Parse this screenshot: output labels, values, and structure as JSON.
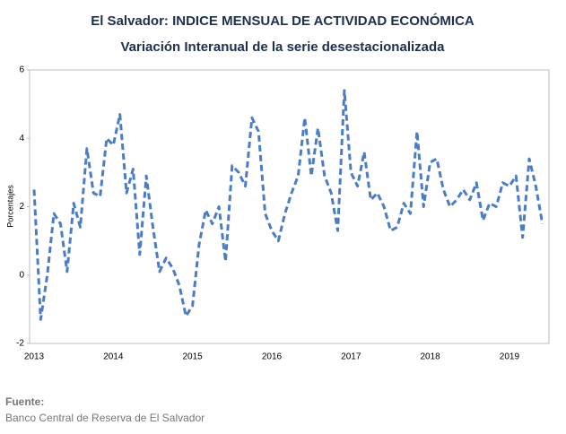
{
  "chart_data": {
    "type": "line",
    "title": "El Salvador: INDICE MENSUAL DE ACTIVIDAD ECONÓMICA",
    "subtitle": "Variación Interanual de la serie desestacionalizada",
    "y_label": "Porcentajes",
    "categories": [
      "2013",
      null,
      null,
      null,
      null,
      null,
      null,
      null,
      null,
      null,
      null,
      null,
      "2014",
      null,
      null,
      null,
      null,
      null,
      null,
      null,
      null,
      null,
      null,
      null,
      "2015",
      null,
      null,
      null,
      null,
      null,
      null,
      null,
      null,
      null,
      null,
      null,
      "2016",
      null,
      null,
      null,
      null,
      null,
      null,
      null,
      null,
      null,
      null,
      null,
      "2017",
      null,
      null,
      null,
      null,
      null,
      null,
      null,
      null,
      null,
      null,
      null,
      "2018",
      null,
      null,
      null,
      null,
      null,
      null,
      null,
      null,
      null,
      null,
      null,
      "2019",
      null,
      null,
      null,
      null,
      null
    ],
    "series": [
      {
        "name": "Variación Interanual",
        "color": "#4a7cc7",
        "values": [
          2.5,
          -1.3,
          0.0,
          1.8,
          1.5,
          0.1,
          2.1,
          1.4,
          3.7,
          2.4,
          2.3,
          4.0,
          3.8,
          4.7,
          2.4,
          3.1,
          0.6,
          2.9,
          1.4,
          0.1,
          0.5,
          0.2,
          -0.3,
          -1.2,
          -0.9,
          0.9,
          1.9,
          1.5,
          2.0,
          0.4,
          3.2,
          3.0,
          2.6,
          4.6,
          4.2,
          1.8,
          1.3,
          1.0,
          1.8,
          2.4,
          2.9,
          4.6,
          2.9,
          4.3,
          2.9,
          2.4,
          1.3,
          5.4,
          3.0,
          2.6,
          3.6,
          2.2,
          2.4,
          2.0,
          1.3,
          1.4,
          2.1,
          1.8,
          4.2,
          2.0,
          3.3,
          3.4,
          2.5,
          2.0,
          2.2,
          2.5,
          2.2,
          2.7,
          1.6,
          2.1,
          2.0,
          2.7,
          2.6,
          2.9,
          1.1,
          3.4,
          2.6,
          1.5
        ]
      }
    ],
    "ylim": [
      -2,
      6
    ],
    "yticks": [
      -2,
      0,
      2,
      4,
      6
    ],
    "grid": false,
    "source_label": "Fuente:",
    "source": "Banco Central de Reserva de El Salvador"
  }
}
